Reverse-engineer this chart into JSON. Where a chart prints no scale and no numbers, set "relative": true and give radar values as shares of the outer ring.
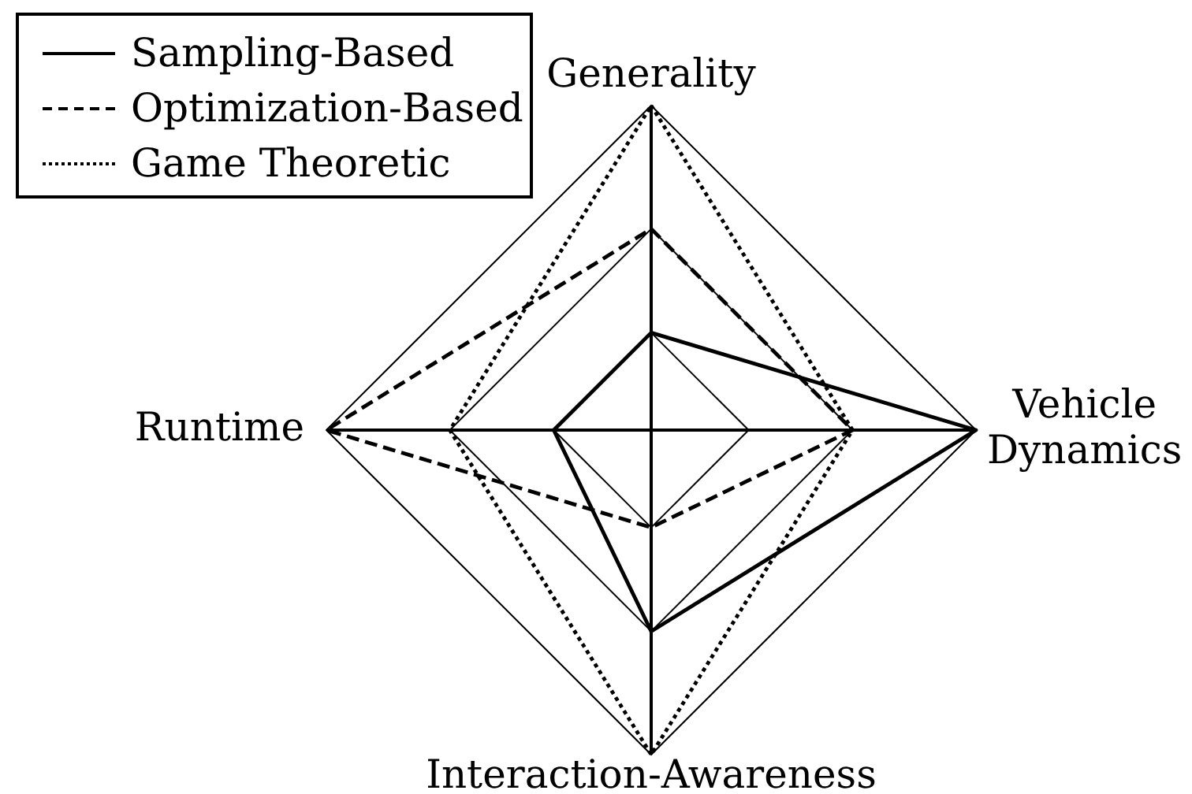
{
  "chart_data": {
    "type": "radar",
    "relative": true,
    "categories": [
      "Generality",
      "Vehicle Dynamics",
      "Interaction-Awareness",
      "Runtime"
    ],
    "series": [
      {
        "name": "Sampling-Based",
        "color": "#000000",
        "line_style": "solid",
        "values": [
          0.3,
          1,
          0.62,
          0.3
        ]
      },
      {
        "name": "Optimization-Based",
        "color": "#000000",
        "line_style": "dashed",
        "values": [
          0.62,
          0.62,
          0.3,
          1
        ]
      },
      {
        "name": "Game Theoretic",
        "color": "#000000",
        "line_style": "dotted",
        "values": [
          1,
          0.62,
          1,
          0.62
        ]
      }
    ],
    "grid": true,
    "legend": "top left"
  }
}
